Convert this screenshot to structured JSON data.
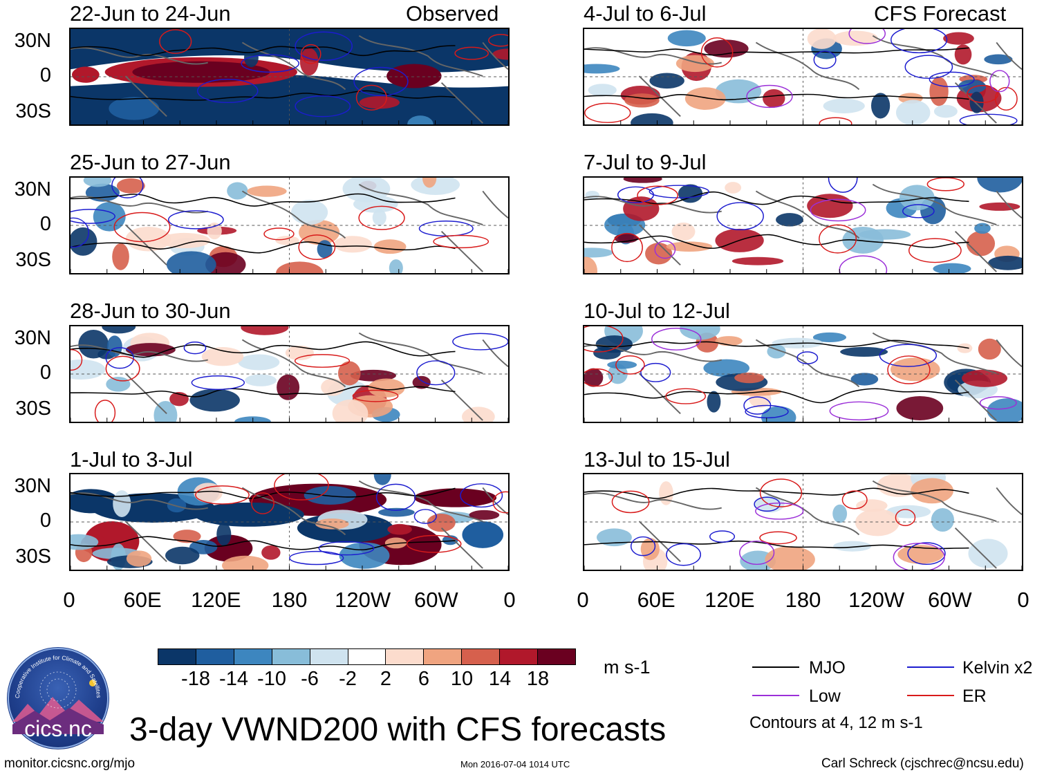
{
  "observed_label": "Observed",
  "forecast_label": "CFS Forecast",
  "panels_left": [
    {
      "title": "22-Jun to 24-Jun",
      "style": "obs"
    },
    {
      "title": "25-Jun to 27-Jun",
      "style": "mix"
    },
    {
      "title": "28-Jun to 30-Jun",
      "style": "mix"
    },
    {
      "title": "1-Jul to 3-Jul",
      "style": "obs"
    }
  ],
  "panels_right": [
    {
      "title": "4-Jul to 6-Jul",
      "style": "fc"
    },
    {
      "title": "7-Jul to 9-Jul",
      "style": "fc"
    },
    {
      "title": "10-Jul to 12-Jul",
      "style": "fc"
    },
    {
      "title": "13-Jul to 15-Jul",
      "style": "fc2"
    }
  ],
  "y_ticks": [
    "30N",
    "0",
    "30S"
  ],
  "x_ticks": [
    "0",
    "60E",
    "120E",
    "180",
    "120W",
    "60W",
    "0"
  ],
  "colorbar": {
    "colors": [
      "#0b3668",
      "#1f5e9f",
      "#3d86bf",
      "#88bdd9",
      "#cfe3ef",
      "#ffffff",
      "#fcdccd",
      "#f0a480",
      "#d6604d",
      "#b1182b",
      "#6a0020"
    ],
    "ticks": [
      "-18",
      "-14",
      "-10",
      "-6",
      "-2",
      "2",
      "6",
      "10",
      "14",
      "18"
    ],
    "units": "m s-1"
  },
  "legend": [
    {
      "label": "MJO",
      "color": "#000000"
    },
    {
      "label": "Kelvin x2",
      "color": "#1c1ccf"
    },
    {
      "label": "Low",
      "color": "#9b2fd8"
    },
    {
      "label": "ER",
      "color": "#d81a1a"
    }
  ],
  "contour_note": "Contours at 4, 12 m s-1",
  "main_title": "3-day VWND200 with CFS forecasts",
  "logo_text": "cics.nc",
  "logo_ring_text": "Cooperative Institute for Climate and Satellites",
  "footer_left": "monitor.cicsnc.org/mjo",
  "footer_center": "Mon 2016-07-04 1014 UTC",
  "footer_right": "Carl Schreck (cjschrec@ncsu.edu)"
}
